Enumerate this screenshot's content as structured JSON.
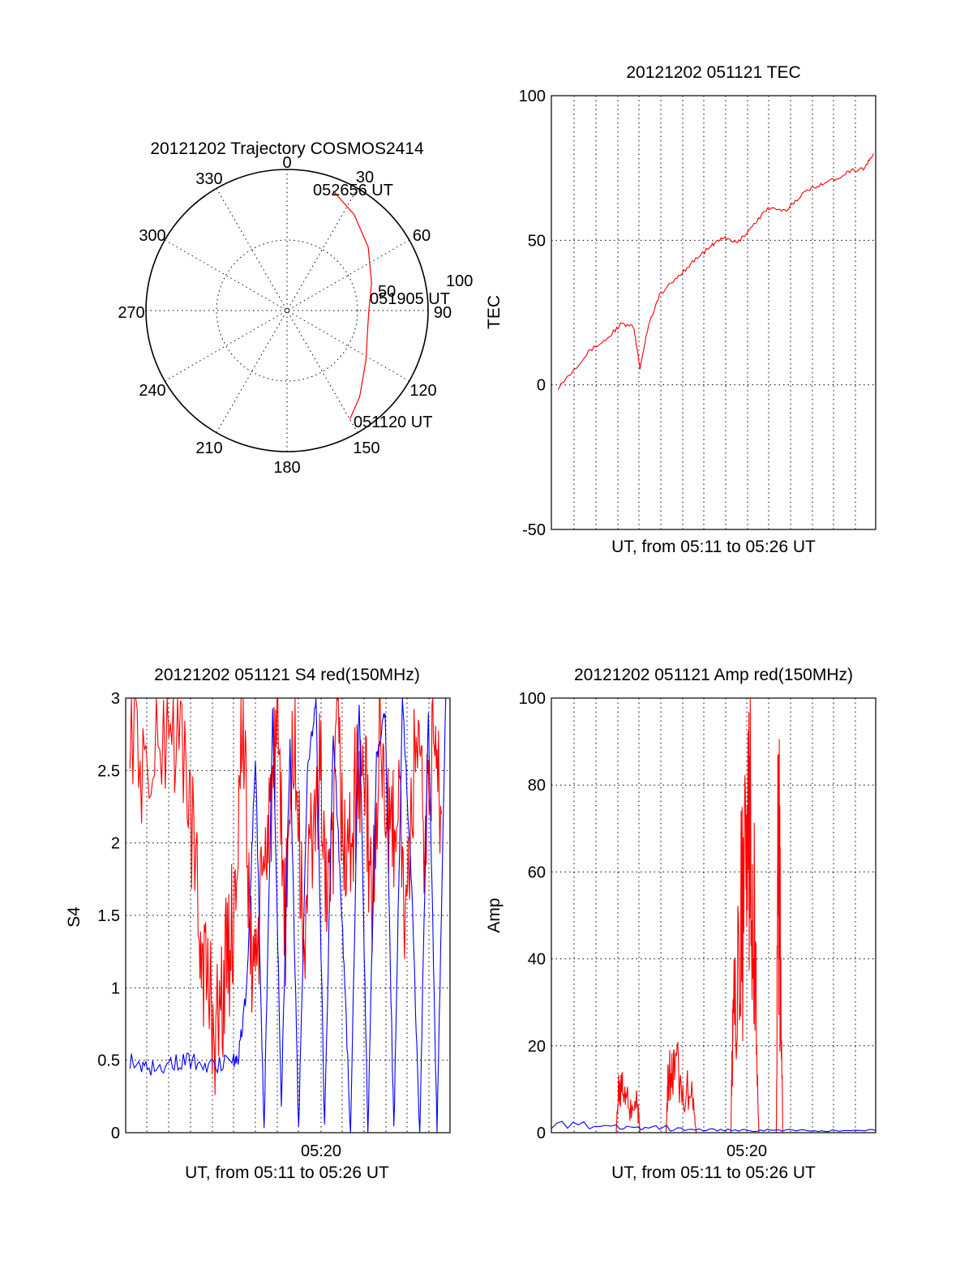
{
  "chart_data": [
    {
      "type": "polar",
      "title": "20121202 Trajectory COSMOS2414",
      "angle_labels": [
        "0",
        "30",
        "60",
        "90",
        "120",
        "150",
        "180",
        "210",
        "240",
        "270",
        "300",
        "330"
      ],
      "radial_labels": [
        "50",
        "100"
      ],
      "trajectory_color": "#ff0000",
      "trajectory": {
        "azimuth_deg": [
          21,
          35,
          52,
          72,
          90,
          105,
          122,
          140,
          150
        ],
        "radius": [
          91,
          83,
          73,
          63,
          58,
          59,
          66,
          80,
          89
        ]
      },
      "annotations": [
        "052656 UT",
        "051905 UT",
        "051120 UT"
      ]
    },
    {
      "type": "line",
      "title": "20121202 051121 TEC",
      "xlabel": "UT, from 05:11 to 05:26 UT",
      "ylabel": "TEC",
      "ylim": [
        -50,
        100
      ],
      "yticks": [
        "100",
        "50",
        "0",
        "-50"
      ],
      "grid": true,
      "series": [
        {
          "color": "#ff0000",
          "x_min_from_0511": [
            0.3,
            1.0,
            1.8,
            2.6,
            3.2,
            3.8,
            4.1,
            4.5,
            5.0,
            5.8,
            6.6,
            7.4,
            7.9,
            8.6,
            9.3,
            10.0,
            10.8,
            11.6,
            12.3,
            13.1,
            13.8,
            14.5,
            14.9
          ],
          "values": [
            -1,
            5,
            12,
            16,
            21,
            20,
            6,
            21,
            31,
            37,
            43,
            48,
            51,
            49,
            55,
            61,
            60,
            66,
            69,
            71,
            74,
            75,
            80
          ]
        }
      ]
    },
    {
      "type": "line",
      "title": "20121202 051121 S4 red(150MHz)",
      "xlabel": "UT, from 05:11 to 05:26 UT",
      "ylabel": "S4",
      "ylim": [
        0,
        3
      ],
      "yticks": [
        "3",
        "2.5",
        "2",
        "1.5",
        "1",
        "0.5",
        "0"
      ],
      "xtick_labels": [
        "05:20"
      ],
      "grid": true,
      "series": [
        {
          "color": "#ff0000",
          "x_min_from_0511": [
            0.2,
            1.0,
            2.0,
            2.8,
            3.4,
            3.8,
            4.2,
            4.6,
            5.0,
            5.4,
            5.8,
            6.2,
            6.6,
            7.0,
            7.4,
            7.8,
            8.2,
            8.6,
            9.0,
            9.4,
            9.8,
            10.2,
            10.6,
            11.0,
            11.4,
            11.8,
            12.2,
            12.6,
            13.0,
            13.4,
            13.8,
            14.2,
            14.6
          ],
          "values": [
            3.0,
            2.4,
            2.9,
            2.6,
            1.4,
            1.0,
            0.7,
            1.1,
            1.5,
            2.9,
            1.2,
            1.4,
            2.2,
            2.6,
            1.5,
            2.8,
            1.3,
            2.0,
            2.5,
            1.4,
            2.7,
            1.8,
            2.3,
            2.6,
            1.5,
            2.9,
            1.9,
            2.4,
            1.3,
            2.8,
            2.0,
            2.7,
            2.2
          ]
        },
        {
          "color": "#0000ff",
          "x_min_from_0511": [
            0.2,
            1.0,
            2.0,
            3.0,
            4.0,
            5.0,
            5.2,
            5.6,
            6.0,
            6.4,
            6.8,
            7.2,
            7.6,
            8.0,
            8.4,
            8.8,
            9.2,
            9.6,
            10.0,
            10.4,
            10.8,
            11.2,
            11.6,
            12.0,
            12.4,
            12.8,
            13.2,
            13.6,
            14.0,
            14.4,
            14.8
          ],
          "values": [
            0.5,
            0.45,
            0.48,
            0.5,
            0.46,
            0.5,
            0.5,
            1.0,
            2.6,
            0.0,
            2.9,
            0.2,
            2.7,
            0.0,
            2.5,
            3.0,
            0.0,
            2.8,
            1.5,
            0.0,
            3.0,
            0.0,
            2.6,
            2.9,
            0.0,
            3.0,
            1.8,
            0.0,
            2.9,
            0.0,
            3.0
          ]
        }
      ]
    },
    {
      "type": "line",
      "title": "20121202 051121 Amp red(150MHz)",
      "xlabel": "UT, from 05:11 to 05:26 UT",
      "ylabel": "Amp",
      "ylim": [
        0,
        100
      ],
      "yticks": [
        "100",
        "80",
        "60",
        "40",
        "20",
        "0"
      ],
      "xtick_labels": [
        "05:20"
      ],
      "grid": true,
      "series": [
        {
          "color": "#ff0000",
          "x_min_from_0511": [
            0.0,
            3.0,
            3.1,
            3.3,
            3.6,
            4.0,
            4.1,
            5.3,
            5.4,
            5.7,
            6.0,
            6.5,
            6.7,
            8.3,
            8.4,
            8.7,
            9.0,
            9.2,
            9.4,
            9.6,
            10.4,
            10.5,
            10.6,
            10.7
          ],
          "values": [
            0.0,
            0.0,
            11.0,
            9.0,
            7.0,
            6.0,
            0.0,
            0.0,
            12.0,
            17.0,
            11.0,
            9.0,
            0.0,
            0.0,
            32.0,
            42.0,
            66.0,
            79.0,
            45.0,
            0.0,
            0.0,
            77.0,
            40.0,
            0.0
          ]
        },
        {
          "color": "#0000ff",
          "x_min_from_0511": [
            0.0,
            3.0,
            5.0,
            7.0,
            9.0,
            11.0,
            13.0,
            15.0
          ],
          "values": [
            1.8,
            1.5,
            1.2,
            0.8,
            0.5,
            0.6,
            0.5,
            0.5
          ]
        }
      ]
    }
  ]
}
